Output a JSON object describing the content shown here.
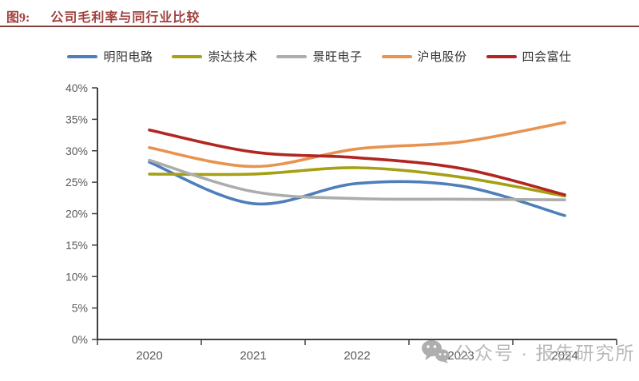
{
  "figure": {
    "label": "图9:",
    "title": "公司毛利率与同行业比较"
  },
  "watermark": {
    "icon": "wechat-icon",
    "text": "公众号 · 报告研究所"
  },
  "chart_data": {
    "type": "line",
    "title": "公司毛利率与同行业比较",
    "x": [
      "2020",
      "2021",
      "2022",
      "2023",
      "2024"
    ],
    "series": [
      {
        "name": "明阳电路",
        "color": "#4E7FBA",
        "values": [
          28.2,
          21.6,
          24.8,
          24.4,
          19.7
        ]
      },
      {
        "name": "崇达技术",
        "color": "#A5A014",
        "values": [
          26.3,
          26.3,
          27.3,
          25.8,
          22.8
        ]
      },
      {
        "name": "景旺电子",
        "color": "#ACACAC",
        "values": [
          28.5,
          23.5,
          22.4,
          22.3,
          22.2
        ]
      },
      {
        "name": "沪电股份",
        "color": "#E89350",
        "values": [
          30.5,
          27.5,
          30.3,
          31.4,
          34.5
        ]
      },
      {
        "name": "四会富仕",
        "color": "#B22622",
        "values": [
          33.3,
          29.8,
          28.9,
          27.2,
          23.0
        ]
      }
    ],
    "xlabel": "",
    "ylabel": "",
    "ylim": [
      0,
      40
    ],
    "ytick_step": 5,
    "ytick_format": "percent",
    "legend_position": "top",
    "grid": false
  },
  "colors": {
    "title_text": "#A0403D",
    "title_rule": "#83423B",
    "axis_line": "#404040",
    "tick_label": "#595959",
    "watermark": "#B1B1B1"
  }
}
